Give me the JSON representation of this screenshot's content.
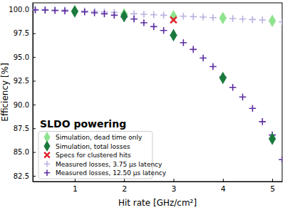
{
  "chart_data": {
    "type": "scatter",
    "title": "SLDO powering",
    "x_label": "Hit rate [GHz/cm²]",
    "y_label": "Efficiency [%]",
    "xlim": [
      0.15,
      5.2
    ],
    "ylim": [
      81.9,
      100.7
    ],
    "xticks": [
      1,
      2,
      3,
      4,
      5
    ],
    "yticks": [
      82.5,
      {
        "value": 85,
        "label": "85.0"
      },
      87.5,
      {
        "value": 90,
        "label": "90.0"
      },
      92.5,
      {
        "value": 95,
        "label": "95.0"
      },
      97.5,
      {
        "value": 100,
        "label": "100.0"
      }
    ],
    "grid": false,
    "legend": "lower left",
    "series": [
      {
        "name": "Simulation, dead time only",
        "color": "#8fe38f",
        "marker": "diamond",
        "x": [
          1,
          2,
          3,
          4,
          5
        ],
        "values": [
          99.8,
          99.5,
          99.3,
          99.1,
          98.8
        ]
      },
      {
        "name": "Simulation, total losses",
        "color": "#1a7a3c",
        "marker": "diamond",
        "x": [
          1,
          2,
          3,
          4,
          5
        ],
        "values": [
          99.8,
          99.3,
          97.3,
          92.8,
          86.4
        ]
      },
      {
        "name": "Specs for clustered hits",
        "color": "#e0202a",
        "marker": "x",
        "x": [
          3
        ],
        "values": [
          98.9
        ]
      },
      {
        "name": "Measured losses, 3.75 μs latency",
        "color": "#b9b1e0",
        "marker": "plus",
        "x": [
          0.2,
          0.4,
          0.6,
          0.8,
          1.0,
          1.2,
          1.4,
          1.6,
          1.8,
          2.0,
          2.2,
          2.4,
          2.6,
          2.8,
          3.0,
          3.2,
          3.4,
          3.6,
          3.8,
          4.0,
          4.2,
          4.4,
          4.6,
          4.8,
          5.0,
          5.2
        ],
        "values": [
          100.0,
          100.0,
          99.95,
          99.95,
          99.9,
          99.85,
          99.8,
          99.75,
          99.7,
          99.6,
          99.55,
          99.5,
          99.45,
          99.4,
          99.3,
          99.3,
          99.25,
          99.2,
          99.15,
          99.1,
          99.05,
          99.0,
          98.95,
          98.9,
          98.8,
          98.7
        ]
      },
      {
        "name": "Measured losses, 12.50 μs latency",
        "color": "#5b2ca0",
        "marker": "plus",
        "x": [
          0.2,
          0.4,
          0.6,
          0.8,
          1.0,
          1.2,
          1.4,
          1.6,
          1.8,
          2.0,
          2.2,
          2.4,
          2.6,
          2.8,
          3.0,
          3.2,
          3.4,
          3.6,
          3.8,
          4.0,
          4.2,
          4.4,
          4.6,
          4.8,
          5.0,
          5.2
        ],
        "values": [
          99.95,
          99.93,
          99.9,
          99.85,
          99.8,
          99.75,
          99.65,
          99.55,
          99.4,
          99.2,
          99.0,
          98.6,
          98.2,
          97.8,
          97.3,
          96.5,
          95.8,
          94.9,
          94.0,
          92.9,
          91.8,
          90.8,
          89.6,
          88.2,
          86.8,
          84.2
        ]
      }
    ]
  }
}
